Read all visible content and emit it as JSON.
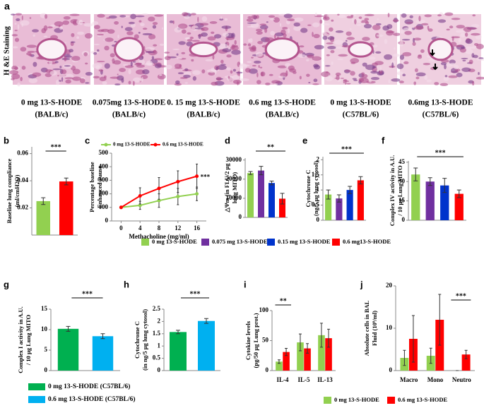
{
  "panel_a": {
    "label": "a",
    "side_label": "H &E Staining",
    "captions": [
      [
        "0 mg 13-S-HODE",
        "(BALB/c)"
      ],
      [
        "0.075mg 13-S-HODE",
        "(BALB/c)"
      ],
      [
        "0. 15 mg 13-S-HODE",
        "(BALB/c)"
      ],
      [
        "0.6 mg 13-S-HODE",
        "(BALB/c)"
      ],
      [
        "0 mg 13-S-HODE",
        "(C57BL/6)"
      ],
      [
        "0.6mg 13-S-HODE",
        "(C57BL/6)"
      ]
    ]
  },
  "chart_data": [
    {
      "type": "bar",
      "panel": "b",
      "ylabel": [
        "Baseline lung compliance",
        "(ml/cmH2O)"
      ],
      "ylim": [
        0,
        0.065
      ],
      "yticks": [
        0.02,
        0.04,
        0.06
      ],
      "values": [
        0.025,
        0.0395
      ],
      "errors": [
        0.0025,
        0.0025
      ],
      "colors": [
        "#92d050",
        "#ff0000"
      ],
      "significance": "***"
    },
    {
      "type": "line",
      "panel": "c",
      "xlabel": "Methacholine (mg/ml)",
      "ylabel": [
        "Percentage baseline",
        "Enhanced Pause"
      ],
      "x": [
        0,
        4,
        8,
        12,
        16
      ],
      "xlim": [
        -2,
        18
      ],
      "xticks": [
        0,
        4,
        8,
        12,
        16
      ],
      "ylim": [
        0,
        500
      ],
      "yticks": [
        0,
        100,
        200,
        300,
        400,
        500
      ],
      "series": [
        {
          "name": "0 mg 13-S-HODE",
          "color": "#92d050",
          "values": [
            100,
            115,
            150,
            180,
            200
          ],
          "errors": [
            8,
            30,
            50,
            60,
            50
          ]
        },
        {
          "name": "0.6 mg 13-S-HODE",
          "color": "#ff0000",
          "values": [
            100,
            185,
            240,
            290,
            330
          ],
          "errors": [
            8,
            60,
            80,
            80,
            90
          ]
        }
      ],
      "significance": "***"
    },
    {
      "type": "bar",
      "panel": "d",
      "ylabel": [
        "△Ψm (in FLU/2 µg",
        "lung MITO)"
      ],
      "ylim": [
        0,
        31000
      ],
      "yticks": [
        0,
        10000,
        20000,
        30000
      ],
      "values": [
        23200,
        24500,
        18000,
        9800
      ],
      "errors": [
        800,
        2200,
        1000,
        2800
      ],
      "colors": [
        "#92d050",
        "#7030a0",
        "#0033cc",
        "#ff0000"
      ],
      "significance": "**"
    },
    {
      "type": "bar",
      "panel": "e",
      "ylabel": [
        "Cytochrome C",
        "(ng/5 µg lung cytosol)"
      ],
      "ylim": [
        0,
        2.1
      ],
      "yticks": [
        0,
        0.5,
        1,
        1.5,
        2
      ],
      "values": [
        0.85,
        0.72,
        1.0,
        1.32
      ],
      "errors": [
        0.15,
        0.12,
        0.12,
        0.12
      ],
      "colors": [
        "#92d050",
        "#7030a0",
        "#0033cc",
        "#ff0000"
      ],
      "significance": "***"
    },
    {
      "type": "bar",
      "panel": "f",
      "ylabel": [
        "Complex IV activity in A.U.",
        "/ 10 µg Lung MITO"
      ],
      "ylim": [
        0,
        46
      ],
      "yticks": [
        0,
        15,
        30,
        45
      ],
      "values": [
        35.5,
        30,
        27,
        20.5
      ],
      "errors": [
        5,
        3,
        5.5,
        3
      ],
      "colors": [
        "#92d050",
        "#7030a0",
        "#0033cc",
        "#ff0000"
      ],
      "significance": "***"
    },
    {
      "type": "bar",
      "panel": "g",
      "ylabel": [
        "Complex I activity in A.U.",
        "/ 10 µg Lung MITO"
      ],
      "ylim": [
        0,
        15
      ],
      "yticks": [
        0,
        5,
        10,
        15
      ],
      "values": [
        10.2,
        8.4
      ],
      "errors": [
        0.6,
        0.6
      ],
      "colors": [
        "#00b050",
        "#00b0f0"
      ],
      "significance": "***"
    },
    {
      "type": "bar",
      "panel": "h",
      "ylabel": [
        "Cytochrome C",
        "(in ng/5 µg lung cytosol)"
      ],
      "ylim": [
        0,
        2.5
      ],
      "yticks": [
        0,
        0.5,
        1,
        1.5,
        2,
        2.5
      ],
      "values": [
        1.57,
        2.02
      ],
      "errors": [
        0.07,
        0.1
      ],
      "colors": [
        "#00b050",
        "#00b0f0"
      ],
      "significance": "***"
    },
    {
      "type": "bar",
      "panel": "i",
      "ylabel": [
        "Cytokine levels",
        "(pg/50 µg Lung prot.)"
      ],
      "categories": [
        "IL-4",
        "IL-5",
        "IL-13"
      ],
      "ylim": [
        0,
        100
      ],
      "yticks": [
        0,
        50,
        100
      ],
      "series": [
        {
          "color": "#92d050",
          "values": [
            15,
            47,
            59
          ],
          "errors": [
            3,
            14,
            20
          ]
        },
        {
          "color": "#ff0000",
          "values": [
            31,
            37,
            54
          ],
          "errors": [
            6,
            8,
            15
          ]
        }
      ],
      "significance": "**"
    },
    {
      "type": "bar",
      "panel": "j",
      "ylabel": [
        "Absolute cells in BAL",
        "Fluid (10⁶/ml)"
      ],
      "categories": [
        "Macro",
        "Mono",
        "Neutro"
      ],
      "ylim": [
        0,
        20
      ],
      "yticks": [
        0,
        10,
        20
      ],
      "series": [
        {
          "color": "#92d050",
          "values": [
            3,
            3.5,
            0
          ],
          "errors": [
            1.8,
            1.8,
            0
          ]
        },
        {
          "color": "#ff0000",
          "values": [
            7.5,
            12,
            3.8
          ],
          "errors": [
            5.5,
            6,
            1
          ]
        }
      ],
      "significance": "***"
    }
  ],
  "legends": [
    {
      "items": [
        {
          "name": "0 mg 13-S-HODE",
          "color": "#92d050"
        },
        {
          "name": "0.075 mg 13-S-HODE",
          "color": "#7030a0"
        },
        {
          "name": "0.15 mg 13-S-HODE",
          "color": "#0033cc"
        },
        {
          "name": "0.6 mg13-S-HODE",
          "color": "#ff0000"
        }
      ]
    },
    {
      "items": [
        {
          "name": "0 mg 13-S-HODE (C57BL/6)",
          "color": "#00b050"
        },
        {
          "name": "0.6 mg 13-S-HODE (C57BL/6)",
          "color": "#00b0f0"
        }
      ]
    },
    {
      "items": [
        {
          "name": "0 mg 13-S-HODE",
          "color": "#92d050"
        },
        {
          "name": "0.6 mg 13-S-HODE",
          "color": "#ff0000"
        }
      ]
    }
  ]
}
